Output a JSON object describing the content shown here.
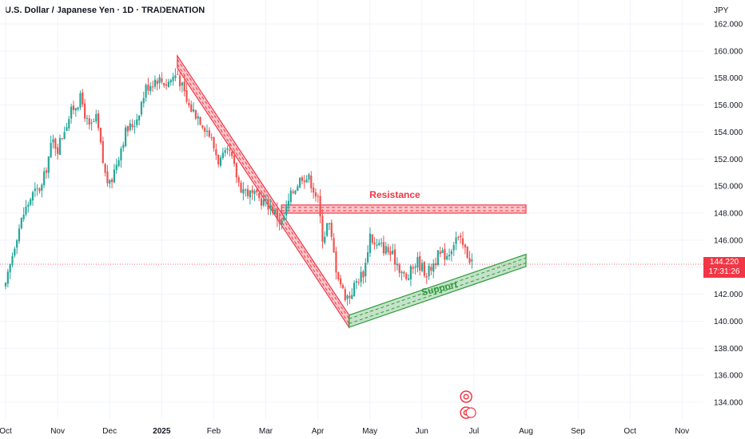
{
  "header": {
    "title": "U.S. Dollar / Japanese Yen · 1D · TRADENATION",
    "currency": "JPY"
  },
  "price_badge": {
    "price": "144.220",
    "countdown": "17:31:26"
  },
  "annotations": {
    "resistance": "Resistance",
    "support": "Support"
  },
  "colors": {
    "up": "#26a69a",
    "down": "#ef5350",
    "resistance": "#f23645",
    "support": "#2e9c3c",
    "last_price": "#f23645"
  },
  "chart_data": {
    "type": "candlestick",
    "title": "U.S. Dollar / Japanese Yen · 1D · TRADENATION",
    "ylabel": "JPY",
    "ylim": [
      132.8,
      162.8
    ],
    "y_ticks": [
      "162.000",
      "160.000",
      "158.000",
      "156.000",
      "154.000",
      "152.000",
      "150.000",
      "148.000",
      "146.000",
      "144.000",
      "142.000",
      "140.000",
      "138.000",
      "136.000",
      "134.000"
    ],
    "x_ticks": [
      {
        "label": "Oct",
        "month": 0
      },
      {
        "label": "Nov",
        "month": 1
      },
      {
        "label": "Dec",
        "month": 2
      },
      {
        "label": "2025",
        "month": 3,
        "bold": true
      },
      {
        "label": "Feb",
        "month": 4
      },
      {
        "label": "Mar",
        "month": 5
      },
      {
        "label": "Apr",
        "month": 6
      },
      {
        "label": "May",
        "month": 7
      },
      {
        "label": "Jun",
        "month": 8
      },
      {
        "label": "Jul",
        "month": 9
      },
      {
        "label": "Aug",
        "month": 10
      },
      {
        "label": "Sep",
        "month": 11
      },
      {
        "label": "Oct",
        "month": 12
      },
      {
        "label": "Nov",
        "month": 13
      }
    ],
    "last_price": 144.22,
    "price_path": [
      [
        0.0,
        142.5
      ],
      [
        0.2,
        146.2
      ],
      [
        0.35,
        148.0
      ],
      [
        0.5,
        149.3
      ],
      [
        0.7,
        150.0
      ],
      [
        0.9,
        153.4
      ],
      [
        1.0,
        152.8
      ],
      [
        1.15,
        154.5
      ],
      [
        1.3,
        155.8
      ],
      [
        1.45,
        156.5
      ],
      [
        1.6,
        154.2
      ],
      [
        1.75,
        155.0
      ],
      [
        1.9,
        151.0
      ],
      [
        2.0,
        150.0
      ],
      [
        2.15,
        152.0
      ],
      [
        2.3,
        154.0
      ],
      [
        2.5,
        154.8
      ],
      [
        2.7,
        157.3
      ],
      [
        2.9,
        158.0
      ],
      [
        3.1,
        157.6
      ],
      [
        3.3,
        158.4
      ],
      [
        3.5,
        156.0
      ],
      [
        3.7,
        155.2
      ],
      [
        3.9,
        154.0
      ],
      [
        4.1,
        151.8
      ],
      [
        4.3,
        152.5
      ],
      [
        4.5,
        150.0
      ],
      [
        4.7,
        149.4
      ],
      [
        4.9,
        149.0
      ],
      [
        5.1,
        148.5
      ],
      [
        5.3,
        147.2
      ],
      [
        5.5,
        149.5
      ],
      [
        5.7,
        150.8
      ],
      [
        5.85,
        150.5
      ],
      [
        6.0,
        149.0
      ],
      [
        6.1,
        146.0
      ],
      [
        6.2,
        147.5
      ],
      [
        6.35,
        144.0
      ],
      [
        6.5,
        142.0
      ],
      [
        6.6,
        141.8
      ],
      [
        6.75,
        143.0
      ],
      [
        6.9,
        143.8
      ],
      [
        7.0,
        146.5
      ],
      [
        7.1,
        145.5
      ],
      [
        7.2,
        145.6
      ],
      [
        7.35,
        145.2
      ],
      [
        7.5,
        144.5
      ],
      [
        7.7,
        143.0
      ],
      [
        7.9,
        144.5
      ],
      [
        8.1,
        143.5
      ],
      [
        8.3,
        144.8
      ],
      [
        8.5,
        145.0
      ],
      [
        8.65,
        146.2
      ],
      [
        8.75,
        145.8
      ],
      [
        8.9,
        144.8
      ],
      [
        9.0,
        144.2
      ]
    ],
    "resistance": {
      "label": "Resistance",
      "band": [
        148.0,
        148.6
      ],
      "from_month": 5.3,
      "to_month": 10.0
    },
    "support": {
      "label": "Support",
      "start": [
        6.6,
        140.0
      ],
      "end": [
        10.0,
        144.5
      ],
      "thickness": 0.9
    },
    "downtrend": {
      "start": [
        3.3,
        159.2
      ],
      "end": [
        6.6,
        140.0
      ],
      "thickness": 0.9
    }
  }
}
